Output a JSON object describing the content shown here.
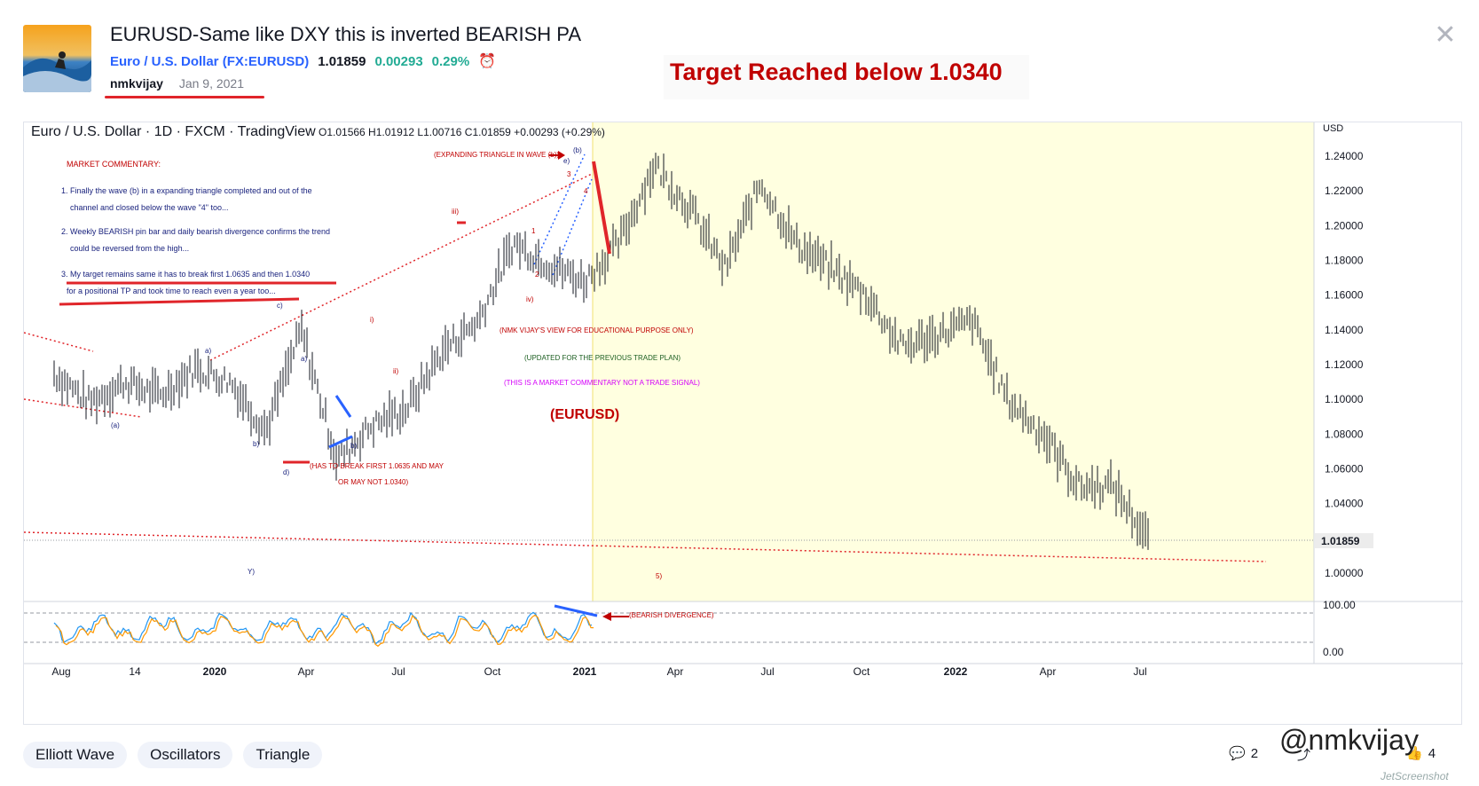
{
  "idea": {
    "title": "EURUSD-Same like DXY this is inverted BEARISH PA",
    "symbol_name": "Euro / U.S. Dollar",
    "symbol_ticker": "(FX:EURUSD)",
    "price": "1.01859",
    "change": "0.00293",
    "change_pct": "0.29%",
    "author": "nmkvijay",
    "date": "Jan 9, 2021"
  },
  "annotation": {
    "target_text": "Target Reached below 1.0340"
  },
  "chart_header": {
    "legend": "Euro / U.S. Dollar · 1D · FXCM · TradingView",
    "ohlc": "O1.01566 H1.01912 L1.00716 C1.01859 +0.00293 (+0.29%)"
  },
  "chart_data": {
    "type": "line",
    "price_currency": "USD",
    "yticks": [
      "1.24000",
      "1.22000",
      "1.20000",
      "1.18000",
      "1.16000",
      "1.14000",
      "1.12000",
      "1.10000",
      "1.08000",
      "1.06000",
      "1.04000",
      "1.00000"
    ],
    "last_price_label": "1.01859",
    "xticks": [
      "Aug",
      "14",
      "2020",
      "Apr",
      "Jul",
      "Oct",
      "2021",
      "Apr",
      "Jul",
      "Oct",
      "2022",
      "Apr",
      "Jul"
    ],
    "osc_ticks": [
      "100.00",
      "0.00"
    ],
    "price_series": [
      [
        "2019-08",
        1.115
      ],
      [
        "2019-09",
        1.098
      ],
      [
        "2019-10",
        1.11
      ],
      [
        "2019-11",
        1.102
      ],
      [
        "2019-12",
        1.118
      ],
      [
        "2020-01",
        1.11
      ],
      [
        "2020-02",
        1.082
      ],
      [
        "2020-03",
        1.14
      ],
      [
        "2020-03b",
        1.065
      ],
      [
        "2020-04",
        1.085
      ],
      [
        "2020-05",
        1.095
      ],
      [
        "2020-06",
        1.128
      ],
      [
        "2020-07",
        1.145
      ],
      [
        "2020-08",
        1.19
      ],
      [
        "2020-09",
        1.178
      ],
      [
        "2020-10",
        1.168
      ],
      [
        "2020-11",
        1.19
      ],
      [
        "2021-01",
        1.235
      ],
      [
        "2021-02",
        1.21
      ],
      [
        "2021-03",
        1.175
      ],
      [
        "2021-05",
        1.225
      ],
      [
        "2021-06",
        1.19
      ],
      [
        "2021-08",
        1.175
      ],
      [
        "2021-10",
        1.16
      ],
      [
        "2021-11",
        1.13
      ],
      [
        "2022-01",
        1.137
      ],
      [
        "2022-02",
        1.145
      ],
      [
        "2022-03",
        1.1
      ],
      [
        "2022-04",
        1.08
      ],
      [
        "2022-05",
        1.05
      ],
      [
        "2022-06",
        1.05
      ],
      [
        "2022-07",
        1.018
      ]
    ],
    "commentary": {
      "heading": "MARKET COMMENTARY:",
      "p1a": "1. Finally the wave (b) in a expanding triangle completed and out of the",
      "p1b": "channel and closed below the wave \"4\" too...",
      "p2a": "2. Weekly BEARISH pin bar and daily bearish divergence confirms the trend",
      "p2b": "could be reversed from the high...",
      "p3a": "3. My target remains same it has to break first 1.0635 and then 1.0340",
      "p3b": "for a positional TP and took time to reach even a year too..."
    },
    "labels": {
      "expanding": "(EXPANDING TRIANGLE IN WAVE (b))",
      "educational": "(NMK VIJAY'S VIEW FOR EDUCATIONAL PURPOSE ONLY)",
      "updated": "(UPDATED FOR THE PREVIOUS TRADE PLAN)",
      "notsignal": "(THIS IS A MARKET COMMENTARY NOT A TRADE SIGNAL)",
      "symbol": "(EURUSD)",
      "break1": "(HAS TO BREAK FIRST 1.0635 AND MAY",
      "break2": "OR MAY NOT 1.0340)",
      "divergence": "(BEARISH DIVERGENCE)",
      "wave_b": "(b)",
      "wave_a": "(a)",
      "wave_iii": "iii)",
      "wave_i": "i)",
      "wave_ii": "ii)",
      "wave_iv": "iv)",
      "wave_c": "c)",
      "wave_d": "d)",
      "wave_a2": "a)",
      "wave_a3": "a)",
      "wave_b2": "b)",
      "wave_b3": "b)",
      "wave_y": "Y)",
      "wave_5": "5)",
      "wave_1": "1",
      "wave_2": "2",
      "wave_3": "3",
      "wave_4": "4",
      "wave_e": "e)"
    }
  },
  "tags": [
    "Elliott Wave",
    "Oscillators",
    "Triangle"
  ],
  "footer": {
    "comments": "2",
    "boosts": "4",
    "watermark": "@nmkvijay",
    "screenshot_mark": "JetScreenshot"
  },
  "colors": {
    "red": "#c00000",
    "blue": "#2962ff",
    "green": "#22ab94",
    "highlight": "#ffffe0"
  }
}
